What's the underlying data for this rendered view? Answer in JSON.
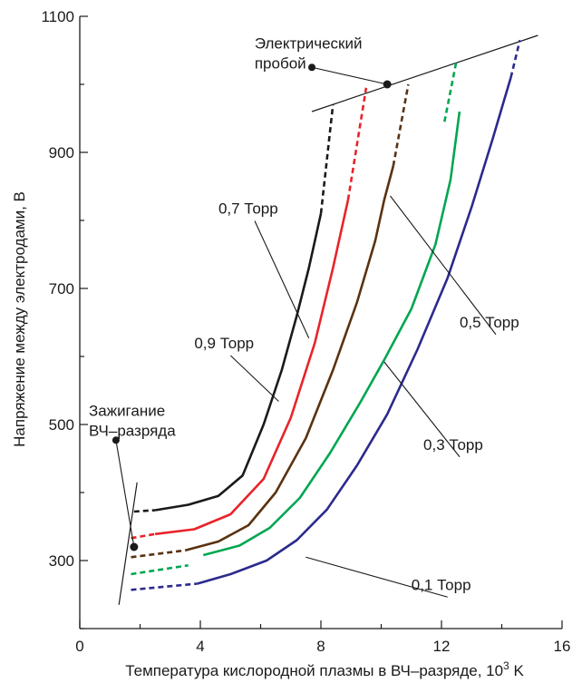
{
  "chart_data": {
    "type": "line",
    "title": "",
    "xlabel": "Температура кислородной плазмы в ВЧ–разряде, 10",
    "xlabel_sup": "3",
    "xlabel_unit": " K",
    "ylabel": "Напряжение между электродами, В",
    "xlim": [
      0,
      16
    ],
    "ylim": [
      200,
      1100
    ],
    "x_ticks": [
      0,
      4,
      8,
      12,
      16
    ],
    "y_ticks": [
      300,
      500,
      700,
      900,
      1100
    ],
    "grid": false,
    "legend": "none",
    "series": [
      {
        "name": "0,1 Торр",
        "color": "#2b2a8c",
        "dashed_start": [
          [
            1.7,
            257
          ],
          [
            3.9,
            266
          ]
        ],
        "solid": [
          [
            3.9,
            266
          ],
          [
            5.0,
            280
          ],
          [
            6.2,
            300
          ],
          [
            7.2,
            330
          ],
          [
            8.2,
            375
          ],
          [
            9.2,
            440
          ],
          [
            10.2,
            515
          ],
          [
            11.2,
            610
          ],
          [
            12.2,
            715
          ],
          [
            13.0,
            820
          ],
          [
            13.7,
            920
          ],
          [
            14.1,
            980
          ],
          [
            14.3,
            1010
          ]
        ],
        "dashed_end": [
          [
            14.3,
            1010
          ],
          [
            14.6,
            1065
          ]
        ]
      },
      {
        "name": "0,3 Торр",
        "color": "#00a651",
        "dashed_start": [
          [
            1.7,
            280
          ],
          [
            3.6,
            293
          ]
        ],
        "solid": [
          [
            4.1,
            308
          ],
          [
            5.3,
            322
          ],
          [
            6.3,
            348
          ],
          [
            7.3,
            392
          ],
          [
            8.3,
            458
          ],
          [
            9.3,
            532
          ],
          [
            10.1,
            595
          ],
          [
            11.0,
            670
          ],
          [
            11.8,
            765
          ],
          [
            12.3,
            860
          ],
          [
            12.6,
            960
          ]
        ],
        "dashed_end": [
          [
            12.1,
            945
          ],
          [
            12.5,
            1035
          ]
        ]
      },
      {
        "name": "0,5 Торр",
        "color": "#5a3210",
        "dashed_start": [
          [
            1.7,
            305
          ],
          [
            3.5,
            315
          ]
        ],
        "solid": [
          [
            3.5,
            315
          ],
          [
            4.6,
            328
          ],
          [
            5.6,
            352
          ],
          [
            6.5,
            400
          ],
          [
            7.5,
            480
          ],
          [
            8.4,
            580
          ],
          [
            9.2,
            680
          ],
          [
            9.8,
            770
          ],
          [
            10.1,
            830
          ],
          [
            10.4,
            880
          ]
        ],
        "dashed_end": [
          [
            10.4,
            880
          ],
          [
            10.9,
            1000
          ]
        ]
      },
      {
        "name": "0,7 Торр",
        "color": "#e8232a",
        "dashed_start": [
          [
            1.7,
            333
          ],
          [
            2.5,
            339
          ]
        ],
        "solid": [
          [
            2.5,
            339
          ],
          [
            3.8,
            346
          ],
          [
            5.0,
            368
          ],
          [
            6.1,
            420
          ],
          [
            7.0,
            510
          ],
          [
            7.8,
            620
          ],
          [
            8.4,
            730
          ],
          [
            8.9,
            830
          ]
        ],
        "dashed_end": [
          [
            8.9,
            830
          ],
          [
            9.5,
            995
          ]
        ]
      },
      {
        "name": "0,9 Торр",
        "color": "#1a1a1a",
        "dashed_start": [
          [
            1.8,
            372
          ],
          [
            2.5,
            374
          ]
        ],
        "solid": [
          [
            2.5,
            374
          ],
          [
            3.6,
            382
          ],
          [
            4.6,
            395
          ],
          [
            5.4,
            425
          ],
          [
            6.1,
            500
          ],
          [
            6.7,
            580
          ],
          [
            7.2,
            660
          ],
          [
            7.6,
            730
          ],
          [
            8.0,
            810
          ]
        ],
        "dashed_end": [
          [
            8.0,
            810
          ],
          [
            8.4,
            970
          ]
        ]
      }
    ],
    "breakdown_line": [
      [
        7.7,
        960
      ],
      [
        15.2,
        1072
      ]
    ],
    "ignition_line": [
      [
        1.3,
        235
      ],
      [
        1.9,
        415
      ]
    ],
    "annotations": [
      {
        "lines": [
          "Электрический",
          "пробой"
        ],
        "text_at": [
          5.8,
          1053
        ],
        "dot": [
          7.7,
          1025
        ],
        "target": [
          10.2,
          1000
        ]
      },
      {
        "lines": [
          "Зажигание",
          "ВЧ–разряда"
        ],
        "text_at": [
          0.3,
          513
        ],
        "dot": [
          1.2,
          477
        ],
        "target": [
          1.8,
          320
        ]
      },
      {
        "lines": [
          "0,7 Торр"
        ],
        "text_at": [
          4.6,
          810
        ],
        "target": [
          7.6,
          627
        ]
      },
      {
        "lines": [
          "0,9 Торр"
        ],
        "text_at": [
          3.8,
          612
        ],
        "target": [
          6.6,
          534
        ]
      },
      {
        "lines": [
          "0,5 Торр"
        ],
        "text_at": [
          12.6,
          643
        ],
        "target": [
          10.3,
          836
        ]
      },
      {
        "lines": [
          "0,3 Торр"
        ],
        "text_at": [
          11.4,
          463
        ],
        "target": [
          10.1,
          592
        ]
      },
      {
        "lines": [
          "0,1 Торр"
        ],
        "text_at": [
          11.0,
          257
        ],
        "target": [
          7.5,
          305
        ]
      }
    ]
  }
}
